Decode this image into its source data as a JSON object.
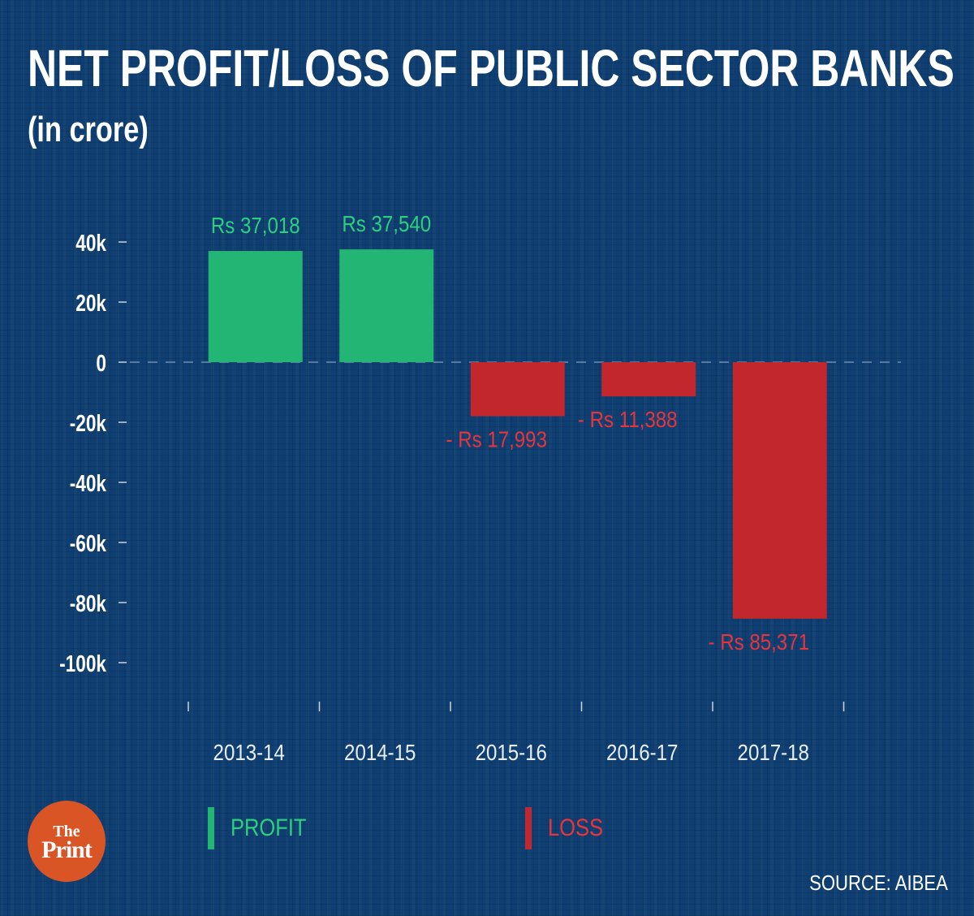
{
  "header": {
    "title": "NET PROFIT/LOSS OF PUBLIC SECTOR BANKS",
    "subtitle": "(in crore)"
  },
  "colors": {
    "background": "#0f3f72",
    "profit": "#22b573",
    "loss": "#c1272d",
    "profit_label": "#2bd07f",
    "loss_label": "#e8343c",
    "logo": "#d95526"
  },
  "chart_data": {
    "type": "bar",
    "title": "NET PROFIT/LOSS OF PUBLIC SECTOR BANKS",
    "subtitle": "(in crore)",
    "xlabel": "",
    "ylabel": "",
    "categories": [
      "2013-14",
      "2014-15",
      "2015-16",
      "2016-17",
      "2017-18"
    ],
    "values": [
      37018,
      37540,
      -17993,
      -11388,
      -85371
    ],
    "data_labels": [
      "Rs 37,018",
      "Rs 37,540",
      "- Rs 17,993",
      "- Rs 11,388",
      "- Rs 85,371"
    ],
    "yticks": [
      40000,
      20000,
      0,
      -20000,
      -40000,
      -60000,
      -80000,
      -100000
    ],
    "ytick_labels": [
      "40k",
      "20k",
      "0",
      "-20k",
      "-40k",
      "-60k",
      "-80k",
      "-100k"
    ],
    "ylim": [
      -100000,
      40000
    ],
    "zero_line": "dashed",
    "grid": false,
    "legend": [
      {
        "name": "PROFIT",
        "applies_to": "positive values"
      },
      {
        "name": "LOSS",
        "applies_to": "negative values"
      }
    ],
    "legend_position": "bottom"
  },
  "legend": {
    "profit_label": "PROFIT",
    "loss_label": "LOSS"
  },
  "logo": {
    "line1": "The",
    "line2": "Print"
  },
  "footer": {
    "source": "SOURCE: AIBEA"
  }
}
